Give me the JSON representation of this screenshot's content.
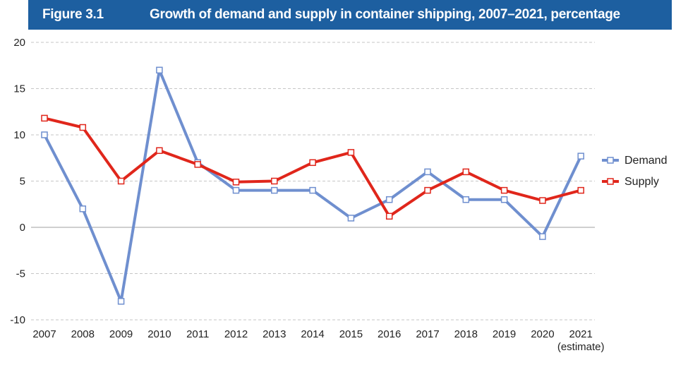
{
  "figure": {
    "label": "Figure 3.1",
    "title": "Growth of demand and supply in container shipping, 2007–2021, percentage"
  },
  "colors": {
    "header_bg": "#1d5fa0",
    "demand": "#6f8fcf",
    "supply": "#e0261b"
  },
  "chart_data": {
    "type": "line",
    "title": "Growth of demand and supply in container shipping, 2007–2021, percentage",
    "x": [
      "2007",
      "2008",
      "2009",
      "2010",
      "2011",
      "2012",
      "2013",
      "2014",
      "2015",
      "2016",
      "2017",
      "2018",
      "2019",
      "2020",
      "2021"
    ],
    "x_sublabel": {
      "2021": "(estimate)"
    },
    "series": [
      {
        "name": "Demand",
        "values": [
          10,
          2,
          -8,
          17,
          7,
          4,
          4,
          4,
          1,
          3,
          6,
          3,
          3,
          -1,
          7.7
        ]
      },
      {
        "name": "Supply",
        "values": [
          11.8,
          10.8,
          5,
          8.3,
          6.8,
          4.9,
          5,
          7,
          8.1,
          1.2,
          4,
          6,
          4,
          2.9,
          4
        ]
      }
    ],
    "ylim": [
      -10,
      20
    ],
    "yticks": [
      20,
      15,
      10,
      5,
      0,
      -5,
      -10
    ],
    "grid": true,
    "legend_position": "right",
    "xlabel": "",
    "ylabel": ""
  }
}
